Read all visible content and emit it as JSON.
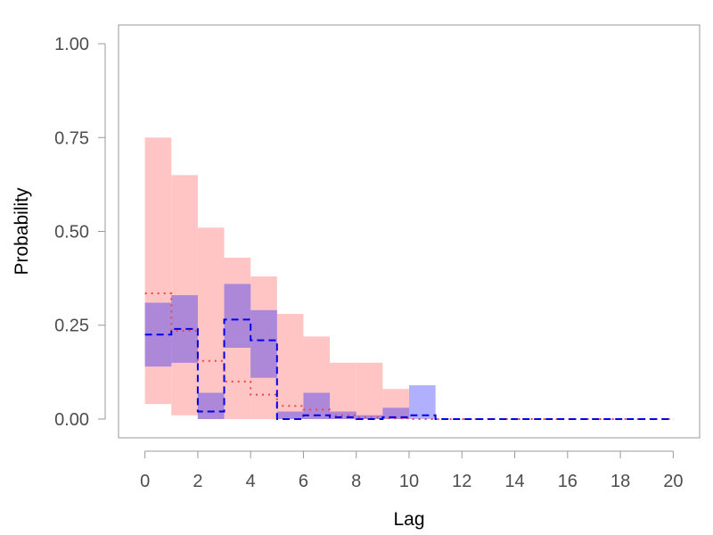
{
  "chart_data": {
    "type": "area",
    "xlabel": "Lag",
    "ylabel": "Probability",
    "xlim": [
      -1,
      21
    ],
    "ylim": [
      -0.05,
      1.05
    ],
    "x_ticks": [
      "0",
      "2",
      "4",
      "6",
      "8",
      "10",
      "12",
      "14",
      "16",
      "18",
      "20"
    ],
    "y_ticks": [
      "0.00",
      "0.25",
      "0.50",
      "0.75",
      "1.00"
    ],
    "grid": false,
    "legend": "none",
    "colors": {
      "red_band": "#ffc4c4",
      "blue_band": "#b0b0ff",
      "overlap": "#ae88d8",
      "red_line": "#ee4444",
      "blue_line": "#0000ee",
      "frame": "#999999",
      "tick_text": "#4d4d4d"
    },
    "series": [
      {
        "style": "red-band",
        "x_start": [
          0,
          1,
          2,
          3,
          4,
          5,
          6,
          7,
          8,
          9,
          10,
          11,
          12,
          13,
          14,
          15,
          16,
          17,
          18,
          19
        ],
        "lower": [
          0.04,
          0.01,
          0,
          0,
          0,
          0,
          0,
          0,
          0,
          0,
          0,
          0,
          0,
          0,
          0,
          0,
          0,
          0,
          0,
          0
        ],
        "upper": [
          0.75,
          0.65,
          0.51,
          0.43,
          0.38,
          0.28,
          0.22,
          0.15,
          0.15,
          0.08,
          0,
          0,
          0,
          0,
          0,
          0,
          0,
          0,
          0,
          0
        ]
      },
      {
        "style": "blue-band",
        "x_start": [
          0,
          1,
          2,
          3,
          4,
          5,
          6,
          7,
          8,
          9,
          10,
          11,
          12,
          13,
          14,
          15,
          16,
          17,
          18,
          19
        ],
        "lower": [
          0.14,
          0.15,
          0,
          0.19,
          0.11,
          0,
          0,
          0,
          0,
          0,
          0,
          0,
          0,
          0,
          0,
          0,
          0,
          0,
          0,
          0
        ],
        "upper": [
          0.31,
          0.33,
          0.07,
          0.36,
          0.29,
          0.02,
          0.07,
          0.02,
          0.01,
          0.03,
          0.09,
          0,
          0,
          0,
          0,
          0,
          0,
          0,
          0,
          0
        ]
      },
      {
        "style": "red-dotted",
        "x_start": [
          0,
          1,
          2,
          3,
          4,
          5,
          6,
          7,
          8,
          9,
          10,
          11,
          12,
          13,
          14,
          15,
          16,
          17,
          18,
          19
        ],
        "values": [
          0.335,
          0.235,
          0.155,
          0.1,
          0.065,
          0.035,
          0.025,
          0.01,
          0.005,
          0.002,
          0,
          0,
          0,
          0,
          0,
          0,
          0,
          0,
          0,
          0
        ]
      },
      {
        "style": "blue-dashed",
        "x_start": [
          0,
          1,
          2,
          3,
          4,
          5,
          6,
          7,
          8,
          9,
          10,
          11,
          12,
          13,
          14,
          15,
          16,
          17,
          18,
          19
        ],
        "values": [
          0.225,
          0.24,
          0.02,
          0.265,
          0.21,
          0,
          0.01,
          0.005,
          0,
          0.005,
          0.01,
          0,
          0,
          0,
          0,
          0,
          0,
          0,
          0,
          0
        ]
      }
    ]
  }
}
